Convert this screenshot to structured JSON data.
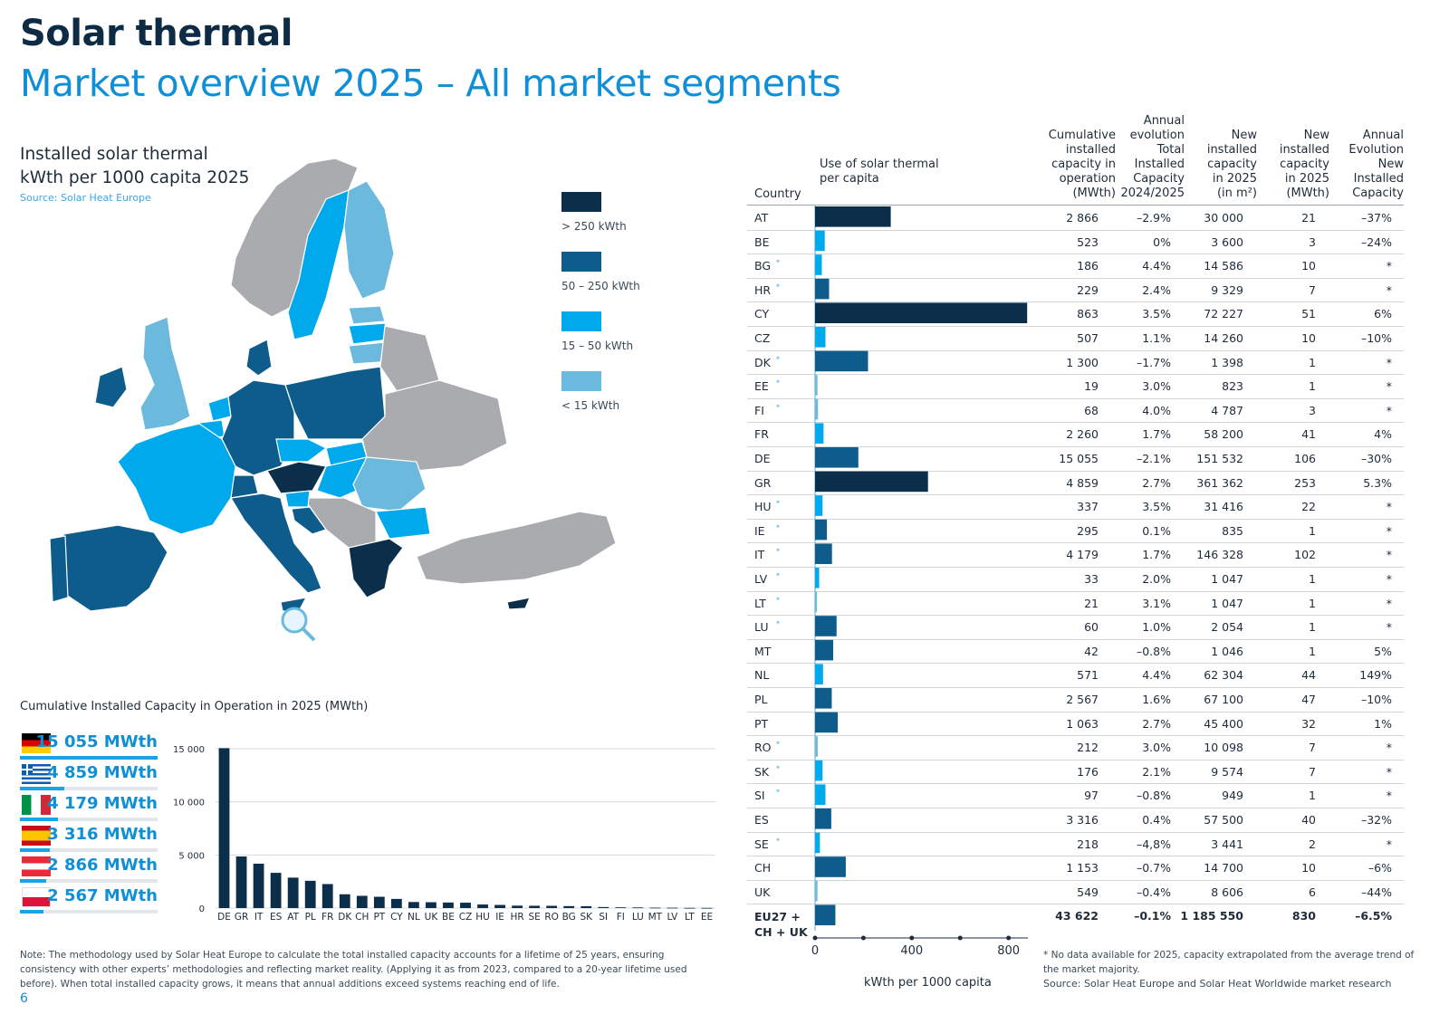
{
  "header": {
    "title": "Solar thermal",
    "subtitle": "Market overview 2025 – All market segments"
  },
  "map": {
    "title_line1": "Installed solar thermal",
    "title_line2": "kWth per 1000 capita 2025",
    "source": "Source: Solar Heat Europe",
    "legend": [
      {
        "label": "> 250 kWth",
        "color": "#0b2e4a"
      },
      {
        "label": "50 – 250 kWth",
        "color": "#0e5c8c"
      },
      {
        "label": "15 – 50 kWth",
        "color": "#00a8ec"
      },
      {
        "label": "< 15 kWth",
        "color": "#6cb9de"
      }
    ],
    "colors": {
      "other": "#a9abae",
      "other_border": "#ffffff"
    }
  },
  "top_list": [
    {
      "value": "15 055 MWth",
      "flag": "germany-flag",
      "fraction": 1.0
    },
    {
      "value": "4 859 MWth",
      "flag": "greece-flag",
      "fraction": 0.323
    },
    {
      "value": "4 179 MWth",
      "flag": "italy-flag",
      "fraction": 0.278
    },
    {
      "value": "3 316 MWth",
      "flag": "spain-flag",
      "fraction": 0.22
    },
    {
      "value": "2 866 MWth",
      "flag": "austria-flag",
      "fraction": 0.19
    },
    {
      "value": "2 567 MWth",
      "flag": "poland-flag",
      "fraction": 0.171
    }
  ],
  "chart_data": [
    {
      "type": "bar",
      "title": "Cumulative Installed Capacity in Operation in 2025 (MWth)",
      "categories": [
        "DE",
        "GR",
        "IT",
        "ES",
        "AT",
        "PL",
        "FR",
        "DK",
        "CH",
        "PT",
        "CY",
        "NL",
        "UK",
        "BE",
        "CZ",
        "HU",
        "IE",
        "HR",
        "SE",
        "RO",
        "BG",
        "SK",
        "SI",
        "FI",
        "LU",
        "MT",
        "LV",
        "LT",
        "EE"
      ],
      "values": [
        15055,
        4859,
        4179,
        3316,
        2866,
        2567,
        2260,
        1300,
        1153,
        1063,
        863,
        571,
        549,
        523,
        507,
        337,
        295,
        229,
        218,
        212,
        186,
        176,
        97,
        68,
        60,
        42,
        33,
        21,
        19
      ],
      "yticks": [
        "15 000",
        "10 000",
        "5 000",
        "0"
      ],
      "ylim": [
        0,
        15000
      ],
      "color": "#0b2e4a",
      "grid": true
    },
    {
      "type": "bar",
      "orientation": "horizontal",
      "title": "Use of solar thermal per capita",
      "xlabel": "kWth per 1000 capita",
      "xticks": [
        "0",
        "400",
        "800"
      ],
      "xlim": [
        0,
        880
      ],
      "categories": [
        "AT",
        "BE",
        "BG",
        "HR",
        "CY",
        "CZ",
        "DK",
        "EE",
        "FI",
        "FR",
        "DE",
        "GR",
        "HU",
        "IE",
        "IT",
        "LV",
        "LT",
        "LU",
        "MT",
        "NL",
        "PL",
        "PT",
        "RO",
        "SK",
        "SI",
        "ES",
        "SE",
        "CH",
        "UK",
        "EU27 + CH + UK"
      ],
      "values": [
        313,
        40,
        28,
        58,
        877,
        43,
        219,
        10,
        12,
        35,
        179,
        467,
        31,
        49,
        70,
        17,
        7,
        89,
        75,
        33,
        69,
        94,
        11,
        31,
        43,
        67,
        20,
        127,
        10,
        84
      ],
      "bands": [
        "dark",
        "light",
        "light",
        "mid",
        "dark",
        "light",
        "mid",
        "none",
        "none",
        "light",
        "mid",
        "dark",
        "light",
        "mid",
        "mid",
        "light",
        "none",
        "mid",
        "mid",
        "light",
        "mid",
        "mid",
        "none",
        "light",
        "light",
        "mid",
        "light",
        "mid",
        "none",
        "mid"
      ]
    }
  ],
  "table": {
    "headers": {
      "country": "Country",
      "use": [
        "Use of solar thermal",
        "per capita"
      ],
      "cum": [
        "Cumulative",
        "installed",
        "capacity in",
        "operation",
        "(MWth)"
      ],
      "evo": [
        "Annual",
        "evolution",
        "Total",
        "Installed",
        "Capacity",
        "2024/2025"
      ],
      "newm2": [
        "New",
        "installed",
        "capacity",
        "in 2025",
        "(in m²)"
      ],
      "newmw": [
        "New",
        "installed",
        "capacity",
        "in 2025",
        "(MWth)"
      ],
      "annnew": [
        "Annual",
        "Evolution",
        "New",
        "Installed",
        "Capacity"
      ]
    },
    "rows": [
      [
        "AT",
        "",
        "2 866",
        "–2.9%",
        "30 000",
        "21",
        "–37%"
      ],
      [
        "BE",
        "",
        "523",
        "0%",
        "3 600",
        "3",
        "–24%"
      ],
      [
        "BG",
        "*",
        "186",
        "4.4%",
        "14 586",
        "10",
        "*"
      ],
      [
        "HR",
        "*",
        "229",
        "2.4%",
        "9 329",
        "7",
        "*"
      ],
      [
        "CY",
        "",
        "863",
        "3.5%",
        "72 227",
        "51",
        "6%"
      ],
      [
        "CZ",
        "",
        "507",
        "1.1%",
        "14 260",
        "10",
        "–10%"
      ],
      [
        "DK",
        "*",
        "1 300",
        "–1.7%",
        "1 398",
        "1",
        "*"
      ],
      [
        "EE",
        "*",
        "19",
        "3.0%",
        "823",
        "1",
        "*"
      ],
      [
        "FI",
        "*",
        "68",
        "4.0%",
        "4 787",
        "3",
        "*"
      ],
      [
        "FR",
        "",
        "2 260",
        "1.7%",
        "58 200",
        "41",
        "4%"
      ],
      [
        "DE",
        "",
        "15 055",
        "–2.1%",
        "151 532",
        "106",
        "–30%"
      ],
      [
        "GR",
        "",
        "4 859",
        "2.7%",
        "361 362",
        "253",
        "5.3%"
      ],
      [
        "HU",
        "*",
        "337",
        "3.5%",
        "31 416",
        "22",
        "*"
      ],
      [
        "IE",
        "*",
        "295",
        "0.1%",
        "835",
        "1",
        "*"
      ],
      [
        "IT",
        "*",
        "4 179",
        "1.7%",
        "146 328",
        "102",
        "*"
      ],
      [
        "LV",
        "*",
        "33",
        "2.0%",
        "1 047",
        "1",
        "*"
      ],
      [
        "LT",
        "*",
        "21",
        "3.1%",
        "1 047",
        "1",
        "*"
      ],
      [
        "LU",
        "*",
        "60",
        "1.0%",
        "2 054",
        "1",
        "*"
      ],
      [
        "MT",
        "",
        "42",
        "–0.8%",
        "1 046",
        "1",
        "5%"
      ],
      [
        "NL",
        "",
        "571",
        "4.4%",
        "62 304",
        "44",
        "149%"
      ],
      [
        "PL",
        "",
        "2 567",
        "1.6%",
        "67 100",
        "47",
        "–10%"
      ],
      [
        "PT",
        "",
        "1 063",
        "2.7%",
        "45 400",
        "32",
        "1%"
      ],
      [
        "RO",
        "*",
        "212",
        "3.0%",
        "10 098",
        "7",
        "*"
      ],
      [
        "SK",
        "*",
        "176",
        "2.1%",
        "9 574",
        "7",
        "*"
      ],
      [
        "SI",
        "*",
        "97",
        "–0.8%",
        "949",
        "1",
        "*"
      ],
      [
        "ES",
        "",
        "3 316",
        "0.4%",
        "57 500",
        "40",
        "–32%"
      ],
      [
        "SE",
        "*",
        "218",
        "–4,8%",
        "3 441",
        "2",
        "*"
      ],
      [
        "CH",
        "",
        "1 153",
        "–0.7%",
        "14 700",
        "10",
        "–6%"
      ],
      [
        "UK",
        "",
        "549",
        "–0.4%",
        "8 606",
        "6",
        "–44%"
      ]
    ],
    "total": [
      "EU27 +",
      "CH + UK",
      "43 622",
      "–0.1%",
      "1 185 550",
      "830",
      "–6.5%"
    ]
  },
  "notes": {
    "left": "Note: The methodology used by Solar Heat Europe to calculate the total installed capacity accounts for a lifetime of 25 years, ensuring consistency with other experts’ methodologies and reflecting market reality. (Applying it as from 2023, compared to a 20-year lifetime used before). When total installed capacity grows, it means that annual additions exceed systems reaching end of life.",
    "right_1": "* No data available for 2025, capacity extrapolated from the average trend of the market majority.",
    "right_2": "Source: Solar Heat Europe and Solar Heat Worldwide market research"
  },
  "page_number": "6"
}
